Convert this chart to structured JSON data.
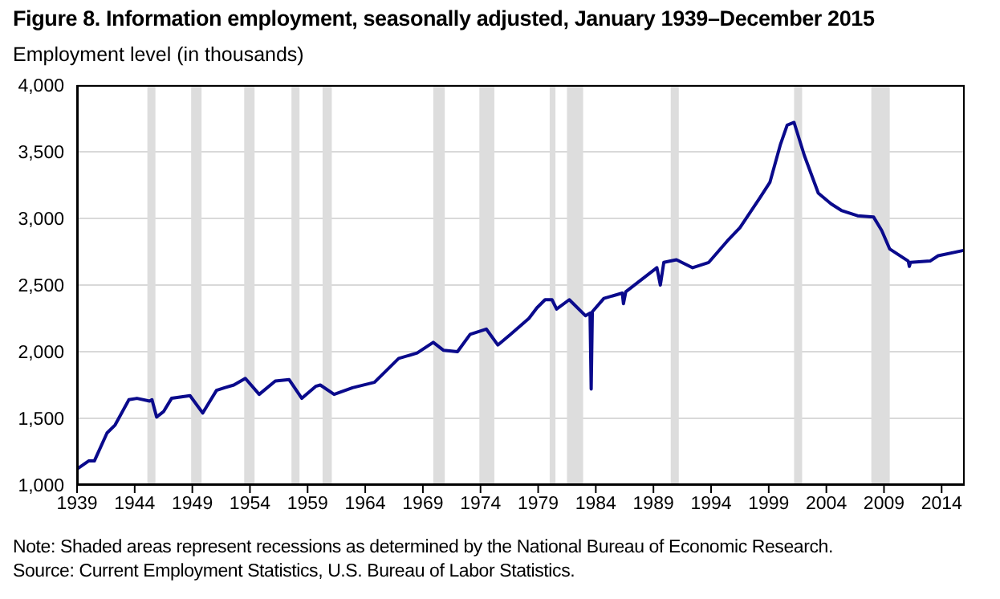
{
  "chart_data": {
    "type": "line",
    "title": "Figure 8. Information employment, seasonally adjusted, January 1939–December 2015",
    "ylabel": "Employment level (in thousands)",
    "annotations": [
      "Note:  Shaded areas represent recessions as determined by the National Bureau of Economic Research.",
      "Source: Current Employment Statistics, U.S. Bureau of Labor Statistics."
    ],
    "x": [
      1939.0,
      1940.0,
      1940.5,
      1941.6,
      1942.3,
      1943.5,
      1944.2,
      1945.3,
      1945.5,
      1945.9,
      1946.5,
      1947.2,
      1948.8,
      1949.9,
      1951.1,
      1951.8,
      1952.6,
      1953.6,
      1954.8,
      1956.2,
      1957.4,
      1958.5,
      1959.7,
      1960.1,
      1961.3,
      1962.9,
      1964.8,
      1966.9,
      1968.5,
      1969.9,
      1970.8,
      1972.0,
      1973.1,
      1974.5,
      1975.5,
      1976.6,
      1978.2,
      1978.9,
      1979.6,
      1980.2,
      1980.6,
      1981.7,
      1983.1,
      1983.5,
      1983.6,
      1983.7,
      1984.7,
      1986.3,
      1986.4,
      1986.6,
      1989.3,
      1989.6,
      1989.9,
      1991.0,
      1992.4,
      1993.8,
      1995.4,
      1996.5,
      1998.2,
      1999.1,
      2000.0,
      2000.6,
      2001.2,
      2002.1,
      2003.3,
      2004.4,
      2005.3,
      2006.7,
      2008.1,
      2008.8,
      2009.5,
      2011.1,
      2011.2,
      2011.3,
      2013.0,
      2013.7,
      2015.9
    ],
    "series": [
      {
        "color": "#0a0a8c",
        "values": [
          1120,
          1180,
          1180,
          1390,
          1450,
          1640,
          1650,
          1630,
          1640,
          1510,
          1550,
          1650,
          1670,
          1540,
          1710,
          1730,
          1750,
          1800,
          1680,
          1780,
          1790,
          1650,
          1740,
          1750,
          1680,
          1730,
          1770,
          1950,
          1990,
          2070,
          2010,
          2000,
          2130,
          2170,
          2050,
          2130,
          2250,
          2330,
          2390,
          2390,
          2320,
          2390,
          2270,
          2290,
          1720,
          2300,
          2400,
          2440,
          2360,
          2450,
          2630,
          2500,
          2670,
          2690,
          2630,
          2670,
          2830,
          2930,
          3150,
          3270,
          3550,
          3700,
          3720,
          3470,
          3190,
          3110,
          3060,
          3020,
          3010,
          2910,
          2770,
          2680,
          2640,
          2670,
          2680,
          2720,
          2760
        ]
      }
    ],
    "xlim": [
      1939,
      2016
    ],
    "xticks": [
      1939,
      1944,
      1949,
      1954,
      1959,
      1964,
      1969,
      1974,
      1979,
      1984,
      1989,
      1994,
      1999,
      2004,
      2009,
      2014
    ],
    "ylim": [
      1000,
      4000
    ],
    "yticks": [
      {
        "value": 1000,
        "label": "1,000"
      },
      {
        "value": 1500,
        "label": "1,500"
      },
      {
        "value": 2000,
        "label": "2,000"
      },
      {
        "value": 2500,
        "label": "2,500"
      },
      {
        "value": 3000,
        "label": "3,000"
      },
      {
        "value": 3500,
        "label": "3,500"
      },
      {
        "value": 4000,
        "label": "4,000"
      }
    ],
    "grid": "y",
    "legend": false,
    "marker": "none",
    "line_style": "solid",
    "bands": [
      {
        "axis": "x",
        "from": 1945.1,
        "to": 1945.8,
        "color": "#dddddd"
      },
      {
        "axis": "x",
        "from": 1948.9,
        "to": 1949.8,
        "color": "#dddddd"
      },
      {
        "axis": "x",
        "from": 1953.5,
        "to": 1954.4,
        "color": "#dddddd"
      },
      {
        "axis": "x",
        "from": 1957.6,
        "to": 1958.3,
        "color": "#dddddd"
      },
      {
        "axis": "x",
        "from": 1960.3,
        "to": 1961.1,
        "color": "#dddddd"
      },
      {
        "axis": "x",
        "from": 1969.9,
        "to": 1970.9,
        "color": "#dddddd"
      },
      {
        "axis": "x",
        "from": 1973.9,
        "to": 1975.2,
        "color": "#dddddd"
      },
      {
        "axis": "x",
        "from": 1980.0,
        "to": 1980.5,
        "color": "#dddddd"
      },
      {
        "axis": "x",
        "from": 1981.5,
        "to": 1982.9,
        "color": "#dddddd"
      },
      {
        "axis": "x",
        "from": 1990.5,
        "to": 1991.2,
        "color": "#dddddd"
      },
      {
        "axis": "x",
        "from": 2001.2,
        "to": 2001.9,
        "color": "#dddddd"
      },
      {
        "axis": "x",
        "from": 2007.9,
        "to": 2009.5,
        "color": "#dddddd"
      }
    ]
  }
}
